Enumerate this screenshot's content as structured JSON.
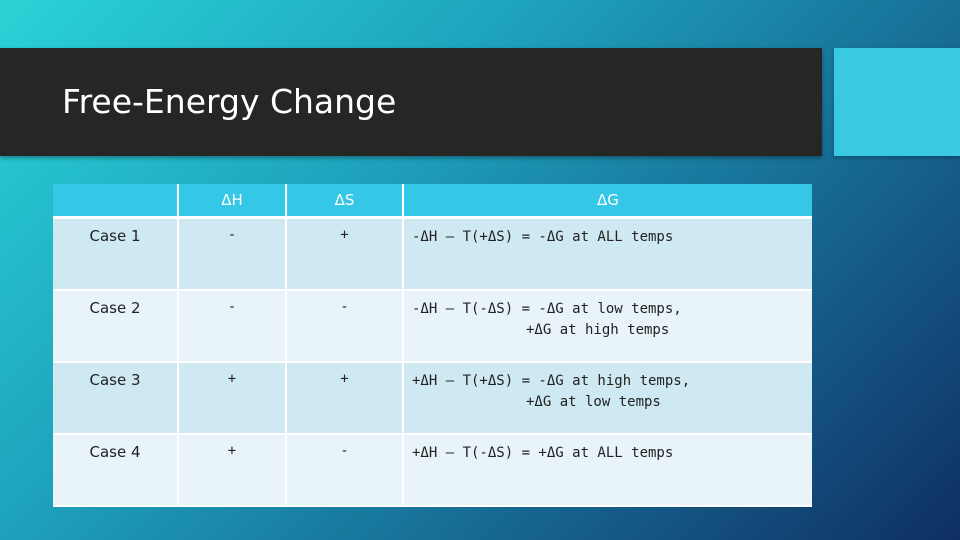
{
  "slide": {
    "title": "Free-Energy Change"
  },
  "table": {
    "headers": [
      "",
      "ΔH",
      "ΔS",
      "ΔG"
    ],
    "rows": [
      {
        "case": "Case 1",
        "dH": "-",
        "dS": "+",
        "dG_line1": "-ΔH – T(+ΔS) = -ΔG at ALL temps",
        "dG_line2": ""
      },
      {
        "case": "Case 2",
        "dH": "-",
        "dS": "-",
        "dG_line1": "-ΔH – T(-ΔS) = -ΔG at low temps,",
        "dG_line2": "+ΔG at high temps"
      },
      {
        "case": "Case 3",
        "dH": "+",
        "dS": "+",
        "dG_line1": "+ΔH – T(+ΔS) = -ΔG at high temps,",
        "dG_line2": "+ΔG at low temps"
      },
      {
        "case": "Case 4",
        "dH": "+",
        "dS": "-",
        "dG_line1": "+ΔH – T(-ΔS) = +ΔG at ALL temps",
        "dG_line2": ""
      }
    ]
  },
  "colors": {
    "title_bar": "#262626",
    "accent": "#3ac9e3",
    "header_bg": "#35c7e6",
    "row_odd": "#cfe9f3",
    "row_even": "#e8f4f9"
  }
}
